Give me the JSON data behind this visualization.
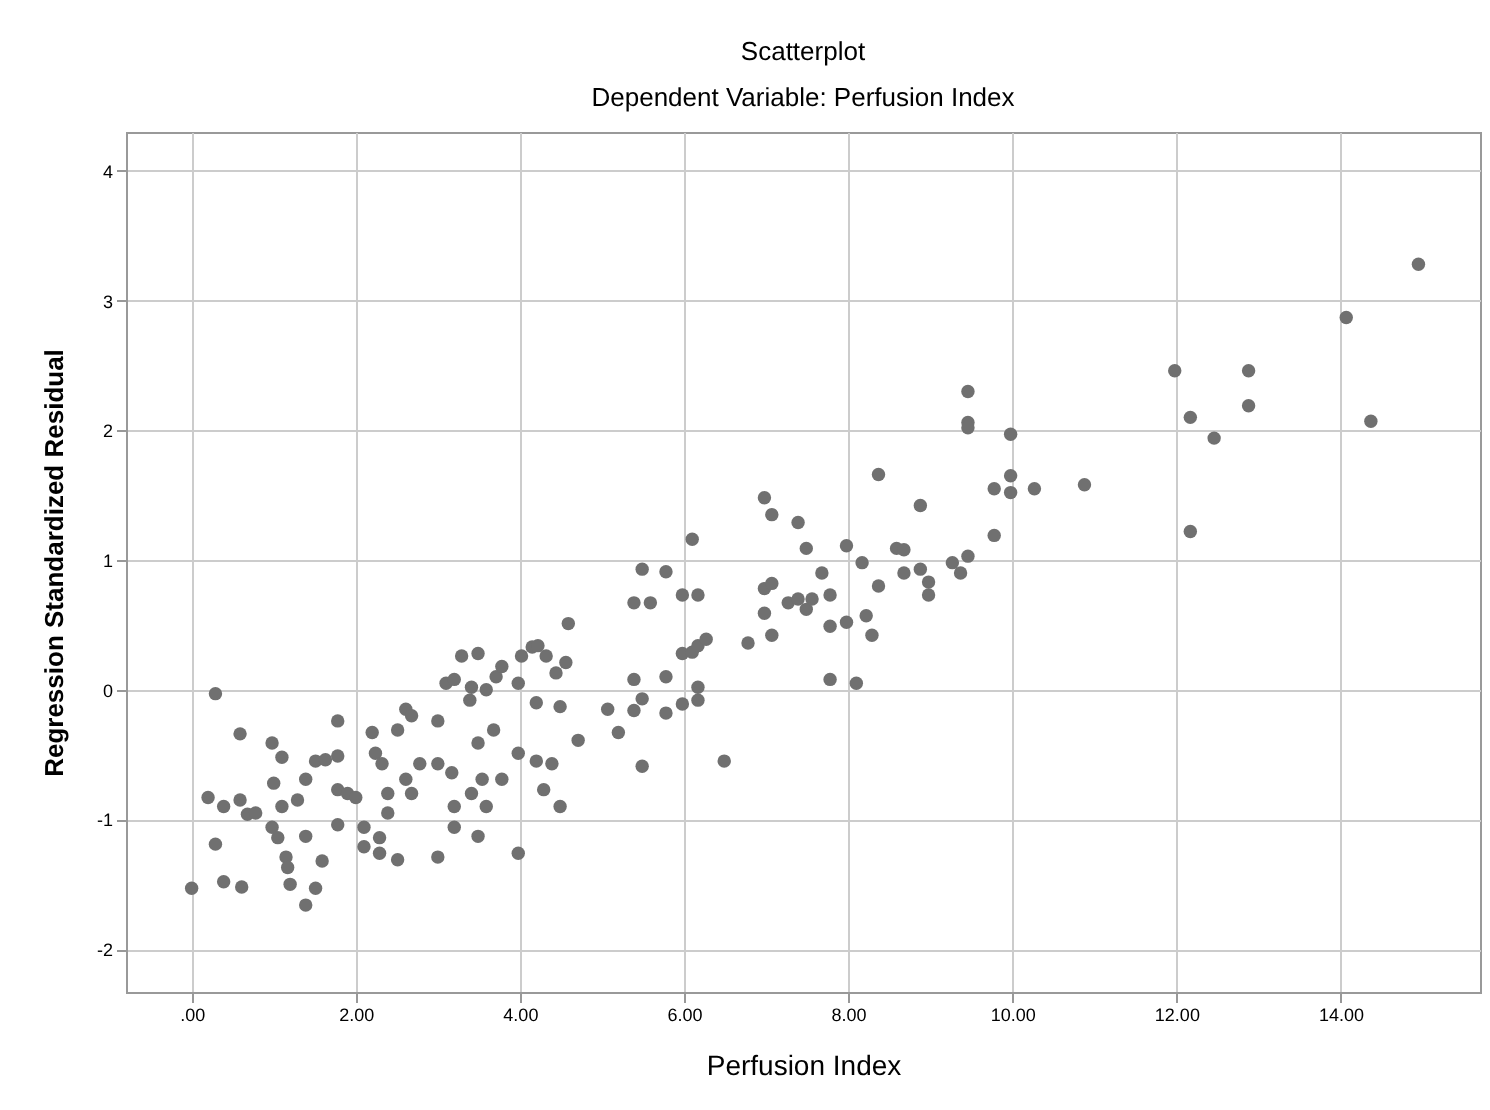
{
  "chart_data": {
    "type": "scatter",
    "title": "Scatterplot",
    "subtitle": "Dependent Variable: Perfusion Index",
    "xlabel": "Perfusion Index",
    "ylabel": "Regression Standardized Residual",
    "xlim": [
      -0.8,
      15.7
    ],
    "ylim": [
      -2.33,
      4.3
    ],
    "xticks": [
      {
        "value": 0,
        "label": ".00"
      },
      {
        "value": 2,
        "label": "2.00"
      },
      {
        "value": 4,
        "label": "4.00"
      },
      {
        "value": 6,
        "label": "6.00"
      },
      {
        "value": 8,
        "label": "8.00"
      },
      {
        "value": 10,
        "label": "10.00"
      },
      {
        "value": 12,
        "label": "12.00"
      },
      {
        "value": 14,
        "label": "14.00"
      }
    ],
    "yticks": [
      -2,
      -1,
      0,
      1,
      2,
      3,
      4
    ],
    "grid": true,
    "marker": "circle",
    "series": [
      {
        "color": "#707070",
        "x": [
          0.0,
          0.2,
          0.29,
          0.39,
          0.39,
          0.29,
          0.59,
          0.59,
          0.61,
          0.68,
          0.78,
          0.98,
          1.0,
          1.1,
          0.98,
          1.05,
          1.1,
          1.15,
          1.17,
          1.2,
          1.39,
          1.51,
          1.39,
          1.59,
          1.29,
          1.39,
          1.51,
          1.63,
          1.78,
          1.78,
          1.78,
          1.9,
          2.0,
          1.78,
          2.1,
          2.1,
          2.2,
          2.24,
          2.32,
          2.39,
          2.39,
          2.29,
          2.29,
          2.51,
          2.51,
          2.61,
          2.68,
          2.61,
          2.68,
          2.78,
          3.0,
          3.0,
          3.0,
          3.17,
          3.2,
          3.2,
          3.1,
          3.2,
          3.29,
          3.49,
          3.41,
          3.39,
          3.59,
          3.71,
          3.78,
          3.68,
          3.49,
          3.41,
          3.54,
          3.59,
          3.49,
          3.78,
          3.98,
          3.98,
          3.98,
          4.02,
          4.15,
          4.22,
          4.32,
          4.2,
          4.2,
          4.39,
          4.29,
          4.49,
          4.49,
          4.44,
          4.56,
          4.59,
          4.71,
          5.07,
          5.2,
          5.49,
          5.39,
          5.49,
          5.39,
          5.39,
          5.59,
          5.49,
          5.78,
          5.78,
          5.78,
          5.98,
          5.98,
          5.98,
          6.1,
          6.17,
          6.1,
          6.17,
          6.27,
          6.17,
          6.17,
          6.49,
          6.78,
          6.98,
          7.07,
          6.98,
          7.07,
          6.98,
          7.07,
          7.39,
          7.49,
          7.27,
          7.39,
          7.49,
          7.56,
          7.68,
          7.78,
          7.78,
          7.78,
          7.98,
          7.98,
          8.1,
          8.17,
          8.22,
          8.29,
          8.37,
          8.37,
          8.59,
          8.68,
          8.68,
          8.88,
          8.88,
          8.98,
          8.98,
          9.27,
          9.37,
          9.46,
          9.46,
          9.46,
          9.46,
          9.78,
          9.78,
          9.98,
          9.98,
          9.98,
          10.27,
          10.88,
          11.98,
          12.17,
          12.17,
          12.46,
          12.88,
          12.88,
          14.07,
          14.37,
          14.95
        ],
        "values": [
          -1.53,
          -0.83,
          -0.03,
          -0.9,
          -1.48,
          -1.19,
          -0.85,
          -0.34,
          -1.52,
          -0.96,
          -0.95,
          -0.41,
          -0.72,
          -0.52,
          -1.06,
          -1.14,
          -0.9,
          -1.29,
          -1.37,
          -1.5,
          -1.66,
          -1.53,
          -1.13,
          -1.32,
          -0.85,
          -0.69,
          -0.55,
          -0.54,
          -0.51,
          -0.24,
          -0.77,
          -0.8,
          -0.83,
          -1.04,
          -1.06,
          -1.21,
          -0.33,
          -0.49,
          -0.57,
          -0.8,
          -0.95,
          -1.14,
          -1.26,
          -1.31,
          -0.31,
          -0.15,
          -0.2,
          -0.69,
          -0.8,
          -0.57,
          -0.24,
          -0.57,
          -1.29,
          -0.64,
          -0.9,
          -1.06,
          0.05,
          0.08,
          0.26,
          0.28,
          0.02,
          -0.08,
          0.0,
          0.1,
          0.18,
          -0.31,
          -0.41,
          -0.8,
          -0.69,
          -0.9,
          -1.13,
          -0.69,
          -0.49,
          0.05,
          -1.26,
          0.26,
          0.33,
          0.34,
          0.26,
          -0.1,
          -0.55,
          -0.57,
          -0.77,
          -0.9,
          -0.13,
          0.13,
          0.21,
          0.51,
          -0.39,
          -0.15,
          -0.33,
          -0.59,
          -0.16,
          -0.07,
          0.08,
          0.67,
          0.67,
          0.93,
          0.91,
          0.1,
          -0.18,
          -0.11,
          0.28,
          0.73,
          1.16,
          0.73,
          0.29,
          0.34,
          0.39,
          0.02,
          -0.08,
          -0.55,
          0.36,
          1.48,
          1.35,
          0.78,
          0.82,
          0.59,
          0.42,
          1.29,
          1.09,
          0.67,
          0.7,
          0.62,
          0.7,
          0.9,
          0.73,
          0.49,
          0.08,
          1.11,
          0.52,
          0.05,
          0.98,
          0.57,
          0.42,
          1.66,
          0.8,
          1.09,
          1.08,
          0.9,
          1.42,
          0.93,
          0.83,
          0.73,
          0.98,
          0.9,
          1.03,
          2.3,
          2.06,
          2.02,
          1.55,
          1.19,
          1.97,
          1.65,
          1.52,
          1.55,
          1.58,
          2.46,
          2.1,
          1.22,
          1.94,
          2.46,
          2.19,
          2.87,
          2.07,
          3.28
        ]
      }
    ]
  }
}
